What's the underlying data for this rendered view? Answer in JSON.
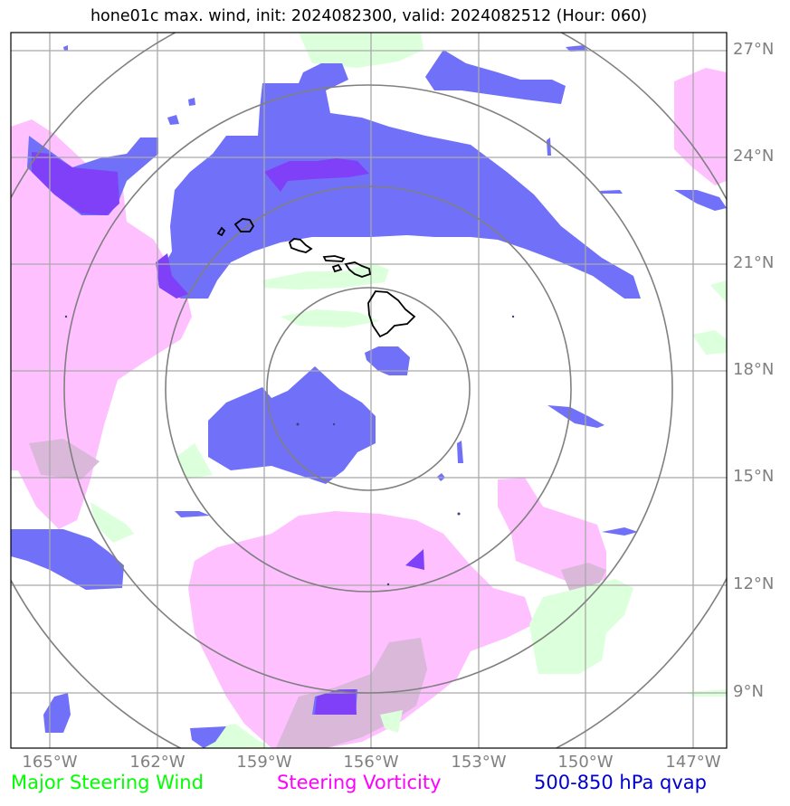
{
  "title": "hone01c max. wind, init: 2024082300, valid: 2024082512 (Hour: 060)",
  "map": {
    "lat_labels": [
      "27°N",
      "24°N",
      "21°N",
      "18°N",
      "15°N",
      "12°N",
      "9°N"
    ],
    "lon_labels": [
      "165°W",
      "162°W",
      "159°W",
      "156°W",
      "153°W",
      "150°W",
      "147°W"
    ],
    "lat_range_deg": [
      7.5,
      27.5
    ],
    "lon_range_deg": [
      -166.1,
      -146.2
    ],
    "center": {
      "lat": 17.5,
      "lon": -156.1
    },
    "range_rings_deg": [
      2.8,
      5.6,
      8.4,
      11.2
    ]
  },
  "legend": {
    "wind": {
      "label": "Major Steering Wind",
      "color": "#00ff00"
    },
    "vorticity": {
      "label": "Steering Vorticity",
      "color": "#ff00ff"
    },
    "qvap": {
      "label": "500-850 hPa qvap",
      "color": "#0000cc"
    }
  },
  "colors": {
    "grid": "#a9a9a9",
    "ring": "#808080",
    "wind_fill": "#dcffdc",
    "vort_fill": "#ffc0ff",
    "qvap_fill": "#7070f8",
    "overlap_fill": "#8040f8",
    "coast": "#000000"
  }
}
